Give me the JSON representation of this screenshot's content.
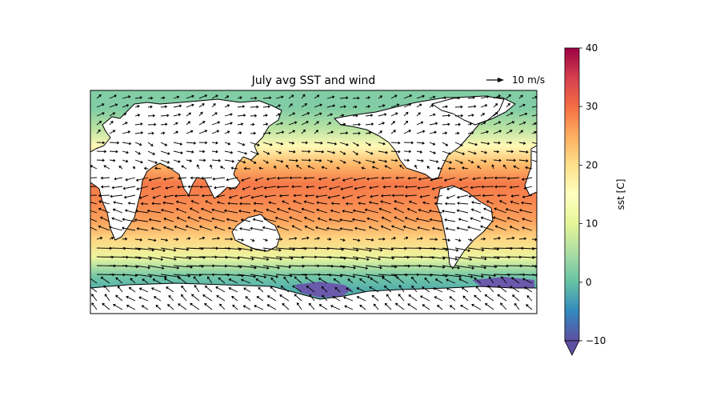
{
  "title": "July avg SST and wind",
  "quiver_key": {
    "label": "10 m/s",
    "magnitude": 10
  },
  "colorbar": {
    "label": "sst [C]",
    "min": -10,
    "max": 40,
    "ticks": [
      -10,
      0,
      10,
      20,
      30,
      40
    ],
    "tick_labels": [
      "−10",
      "0",
      "10",
      "20",
      "30",
      "40"
    ],
    "extend": "min",
    "colormap": "Spectral_r",
    "colors": [
      "#5e4fa2",
      "#3288bd",
      "#66c2a5",
      "#abdda4",
      "#e6f598",
      "#ffffbf",
      "#fee08b",
      "#fdae61",
      "#f46d43",
      "#d53e4f",
      "#9e0142"
    ]
  },
  "map": {
    "projection": "PlateCarree",
    "lon_range": [
      -180,
      180
    ],
    "lat_range": [
      -90,
      90
    ],
    "land_color": "#ffffff",
    "coastline_color": "#000000"
  },
  "chart_data": {
    "type": "heatmap",
    "title": "July avg SST and wind",
    "colorbar_label": "sst [C]",
    "zlim": [
      -10,
      40
    ],
    "sst_by_latitude": {
      "lat": [
        75,
        60,
        45,
        30,
        15,
        0,
        -15,
        -30,
        -45,
        -60,
        -70
      ],
      "sst_c": [
        2,
        6,
        16,
        24,
        29,
        28,
        26,
        21,
        11,
        1,
        -1.5
      ]
    }
  }
}
